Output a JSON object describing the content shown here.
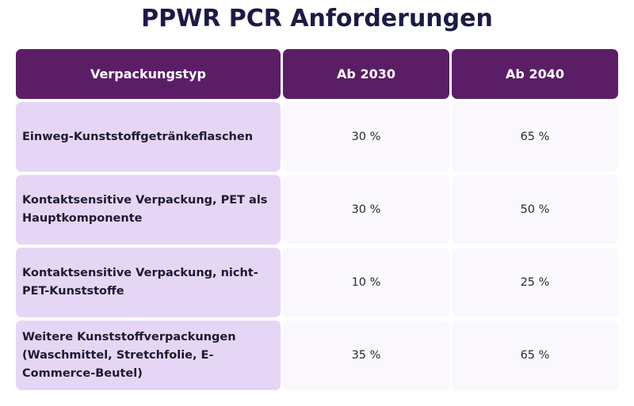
{
  "title": "PPWR PCR Anforderungen",
  "table": {
    "headers": [
      "Verpackungstyp",
      "Ab 2030",
      "Ab 2040"
    ],
    "rows": [
      {
        "type_lines": [
          "Einweg-Kunststoffgetränkeflaschen"
        ],
        "y2030": "30 %",
        "y2040": "65 %"
      },
      {
        "type_lines": [
          "Kontaktsensitive Verpackung, PET als",
          "Hauptkomponente"
        ],
        "y2030": "30 %",
        "y2040": "50 %"
      },
      {
        "type_lines": [
          "Kontaktsensitive Verpackung, nicht-",
          "PET-Kunststoffe"
        ],
        "y2030": "10 %",
        "y2040": "25 %"
      },
      {
        "type_lines": [
          "Weitere Kunststoffverpackungen",
          "(Waschmittel, Stretchfolie, E-",
          "Commerce-Beutel)"
        ],
        "y2030": "35 %",
        "y2040": "65 %"
      }
    ]
  }
}
